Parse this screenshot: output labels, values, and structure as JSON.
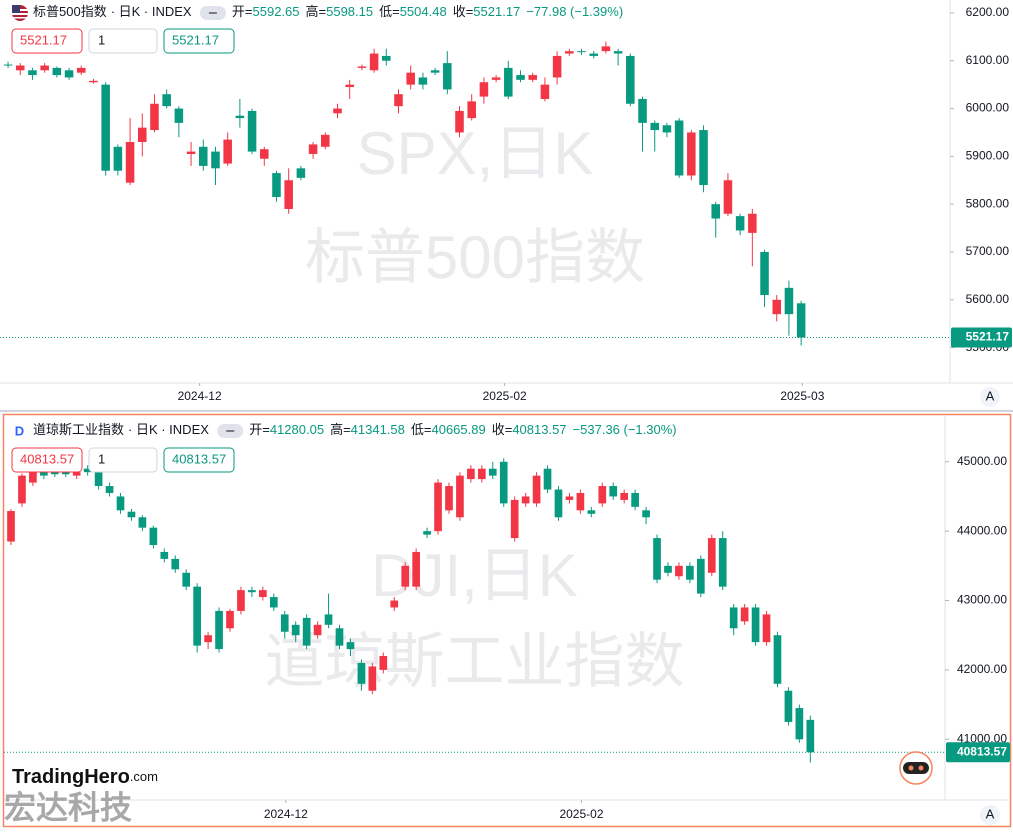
{
  "chart_data": [
    {
      "type": "candlestick",
      "name": "标普500指数",
      "suffix": "· 日K · INDEX",
      "ohlc_labels": [
        "开=",
        "高=",
        "低=",
        "收="
      ],
      "change": "−77.98 (−1.39%)",
      "quantity": 1,
      "watermark": [
        "SPX,日K",
        "标普500指数"
      ],
      "up_color": "#f23645",
      "down_color": "#089981",
      "grid": false,
      "ylim": [
        5426,
        6227
      ],
      "xlim": [
        -0.66,
        77.2
      ],
      "yticks": [
        {
          "value": 5500,
          "label": "5500.00"
        },
        {
          "value": 5600,
          "label": "5600.00"
        },
        {
          "value": 5700,
          "label": "5700.00"
        },
        {
          "value": 5800,
          "label": "5800.00"
        },
        {
          "value": 5900,
          "label": "5900.00"
        },
        {
          "value": 6000,
          "label": "6000.00"
        },
        {
          "value": 6100,
          "label": "6100.00"
        },
        {
          "value": 6200,
          "label": "6200.00"
        }
      ],
      "xticks": [
        {
          "value": 15.7,
          "label": "2024-12"
        },
        {
          "value": 40.7,
          "label": "2025-02"
        },
        {
          "value": 65.1,
          "label": "2025-03"
        }
      ],
      "open": [
        6092,
        6080,
        6080,
        6080,
        6085,
        6080,
        6075,
        6055,
        6050,
        5920,
        5845,
        5930,
        5955,
        6030,
        6000,
        5905,
        5920,
        5910,
        5885,
        5985,
        5995,
        5895,
        5865,
        5790,
        5875,
        5905,
        5920,
        5990,
        6045,
        6085,
        6080,
        6110,
        6005,
        6050,
        6065,
        6080,
        6095,
        5950,
        5980,
        6025,
        6060,
        6085,
        6070,
        6060,
        6020,
        6065,
        6115,
        6120,
        6115,
        6120,
        6120,
        6110,
        6020,
        5970,
        5965,
        5975,
        5860,
        5955,
        5800,
        5780,
        5775,
        5740,
        5700,
        5570,
        5625,
        5592.65
      ],
      "high": [
        6098,
        6095,
        6085,
        6095,
        6088,
        6085,
        6090,
        6062,
        6055,
        5925,
        5980,
        5990,
        6030,
        6040,
        6005,
        5930,
        5935,
        5920,
        5950,
        6020,
        6000,
        5920,
        5870,
        5875,
        5880,
        5930,
        5950,
        6010,
        6060,
        6092,
        6125,
        6125,
        6040,
        6090,
        6075,
        6085,
        6120,
        6005,
        6030,
        6065,
        6070,
        6100,
        6080,
        6075,
        6065,
        6120,
        6125,
        6125,
        6120,
        6140,
        6125,
        6115,
        6025,
        5975,
        5970,
        5980,
        5955,
        5965,
        5805,
        5865,
        5780,
        5790,
        5705,
        5610,
        5640,
        5598.15
      ],
      "low": [
        6085,
        6070,
        6060,
        6075,
        6065,
        6060,
        6070,
        6052,
        5860,
        5860,
        5840,
        5900,
        5950,
        6000,
        5940,
        5880,
        5870,
        5840,
        5880,
        5960,
        5905,
        5880,
        5805,
        5780,
        5850,
        5895,
        5915,
        5980,
        6020,
        6080,
        6075,
        6090,
        5990,
        6040,
        6040,
        6070,
        6030,
        5940,
        5975,
        6010,
        6055,
        6020,
        6055,
        6055,
        6015,
        6050,
        6110,
        6112,
        6105,
        6115,
        6090,
        6005,
        5910,
        5910,
        5940,
        5855,
        5850,
        5825,
        5730,
        5775,
        5735,
        5670,
        5585,
        5555,
        5525,
        5504.48
      ],
      "close": [
        6090,
        6090,
        6070,
        6090,
        6070,
        6065,
        6085,
        6058,
        5870,
        5870,
        5930,
        5960,
        6010,
        6005,
        5970,
        5910,
        5880,
        5875,
        5935,
        5980,
        5910,
        5915,
        5815,
        5850,
        5855,
        5925,
        5945,
        6000,
        6050,
        6088,
        6115,
        6100,
        6030,
        6075,
        6050,
        6075,
        6040,
        5995,
        6015,
        6055,
        6065,
        6025,
        6060,
        6070,
        6050,
        6110,
        6120,
        6118,
        6110,
        6130,
        6115,
        6010,
        5970,
        5955,
        5950,
        5860,
        5950,
        5840,
        5770,
        5850,
        5745,
        5780,
        5610,
        5600,
        5570,
        5521.17
      ]
    },
    {
      "type": "candlestick",
      "name": "道琼斯工业指数",
      "suffix": "· 日K · INDEX",
      "ohlc_labels": [
        "开=",
        "高=",
        "低=",
        "收="
      ],
      "change": "−537.36 (−1.30%)",
      "quantity": 1,
      "watermark": [
        "DJI,日K",
        "道琼斯工业指数"
      ],
      "up_color": "#f23645",
      "down_color": "#089981",
      "grid": false,
      "ylim": [
        40125,
        45674
      ],
      "xlim": [
        -0.64,
        85.3
      ],
      "yticks": [
        {
          "value": 41000,
          "label": "41000.00"
        },
        {
          "value": 42000,
          "label": "42000.00"
        },
        {
          "value": 43000,
          "label": "43000.00"
        },
        {
          "value": 44000,
          "label": "44000.00"
        },
        {
          "value": 45000,
          "label": "45000.00"
        }
      ],
      "xticks": [
        {
          "value": 25.1,
          "label": "2024-12"
        },
        {
          "value": 52.1,
          "label": "2025-02"
        }
      ],
      "open": [
        43850,
        44400,
        44700,
        44880,
        44850,
        44880,
        44800,
        44900,
        44850,
        44650,
        44500,
        44280,
        44200,
        44050,
        43700,
        43600,
        43400,
        43200,
        42400,
        42850,
        42600,
        42850,
        43150,
        43050,
        43050,
        42800,
        42650,
        42750,
        42500,
        42800,
        42600,
        42400,
        42100,
        41700,
        42000,
        42900,
        43200,
        43200,
        44000,
        44000,
        44300,
        44200,
        44750,
        44750,
        44900,
        45000,
        43900,
        44400,
        44400,
        44900,
        44600,
        44450,
        44300,
        44300,
        44400,
        44650,
        44450,
        44550,
        44300,
        43900,
        43500,
        43350,
        43500,
        43600,
        43400,
        43900,
        42900,
        42700,
        42900,
        42400,
        42500,
        41700,
        41450,
        41280.05
      ],
      "high": [
        44320,
        44830,
        44900,
        44950,
        44880,
        44900,
        44900,
        44950,
        44880,
        44700,
        44550,
        44320,
        44230,
        44080,
        43750,
        43650,
        43450,
        43250,
        42550,
        42900,
        42880,
        43200,
        43200,
        43200,
        43100,
        42850,
        42700,
        42800,
        42700,
        43100,
        42650,
        42450,
        42150,
        42100,
        42250,
        43050,
        43550,
        43750,
        44050,
        44750,
        44700,
        44850,
        44950,
        44950,
        45000,
        45050,
        44500,
        44550,
        44850,
        44950,
        44650,
        44550,
        44600,
        44350,
        44700,
        44700,
        44600,
        44600,
        44350,
        43950,
        43550,
        43550,
        43550,
        43650,
        43950,
        44000,
        42950,
        42950,
        42950,
        42850,
        42550,
        41750,
        41500,
        41341.58
      ],
      "low": [
        43800,
        44350,
        44650,
        44750,
        44780,
        44780,
        44750,
        44800,
        44600,
        44500,
        44250,
        44150,
        44000,
        43750,
        43550,
        43400,
        43150,
        42250,
        42300,
        42250,
        42550,
        42800,
        43050,
        43000,
        42850,
        42450,
        42400,
        42300,
        42450,
        42600,
        42300,
        42200,
        41700,
        41650,
        41950,
        42850,
        43150,
        43150,
        43900,
        43950,
        44250,
        44150,
        44700,
        44700,
        44750,
        44350,
        43850,
        44350,
        44350,
        44550,
        44150,
        44400,
        44250,
        44200,
        44350,
        44450,
        44400,
        44300,
        44100,
        43250,
        43350,
        43300,
        43250,
        43050,
        43350,
        43150,
        42500,
        42650,
        42350,
        42350,
        41750,
        41200,
        40950,
        40665.89
      ],
      "close": [
        44290,
        44800,
        44850,
        44800,
        44820,
        44820,
        44850,
        44850,
        44650,
        44550,
        44300,
        44200,
        44050,
        43800,
        43600,
        43450,
        43200,
        42350,
        42500,
        42300,
        42850,
        43150,
        43120,
        43150,
        42900,
        42550,
        42500,
        42350,
        42650,
        42650,
        42350,
        42300,
        41800,
        42050,
        42200,
        43000,
        43500,
        43700,
        43950,
        44700,
        44650,
        44800,
        44900,
        44900,
        44800,
        44400,
        44450,
        44500,
        44800,
        44600,
        44200,
        44500,
        44550,
        44250,
        44650,
        44500,
        44550,
        44350,
        44200,
        43300,
        43400,
        43500,
        43300,
        43100,
        43900,
        43200,
        42600,
        42900,
        42400,
        42800,
        41800,
        41250,
        41000,
        40813.57
      ]
    }
  ],
  "branding": {
    "logo": "TradingHero",
    "logo_suffix": ".com",
    "company": "宏达科技",
    "scale_button": "A"
  }
}
